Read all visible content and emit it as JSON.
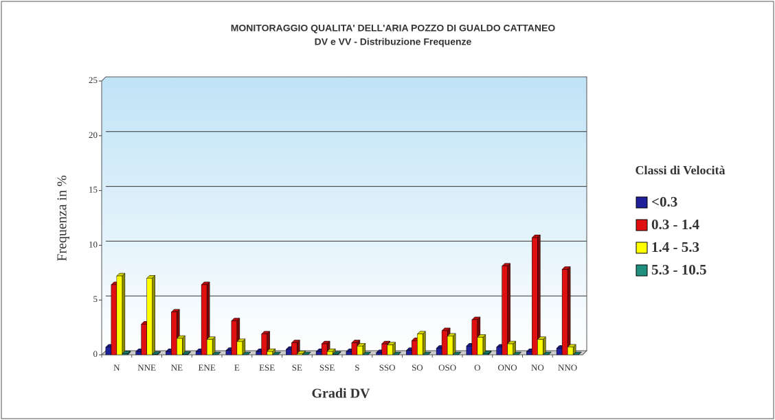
{
  "chart_data": {
    "type": "bar",
    "title": "MONITORAGGIO QUALITA' DELL'ARIA POZZO DI GUALDO CATTANEO",
    "subtitle": "DV e VV - Distribuzione Frequenze",
    "x_label": "Gradi DV",
    "y_label": "Frequenza  in %",
    "legend_title": "Classi di Velocità",
    "categories": [
      "N",
      "NNE",
      "NE",
      "ENE",
      "E",
      "ESE",
      "SE",
      "SSE",
      "S",
      "SSO",
      "SO",
      "OSO",
      "O",
      "ONO",
      "NO",
      "NNO"
    ],
    "series": [
      {
        "name": "<0.3",
        "color": "#1f1f9a",
        "values": [
          0.7,
          0.3,
          0.3,
          0.3,
          0.4,
          0.3,
          0.5,
          0.3,
          0.3,
          0.2,
          0.4,
          0.6,
          0.8,
          0.7,
          0.3,
          0.6
        ]
      },
      {
        "name": "0.3 - 1.4",
        "color": "#e01010",
        "values": [
          6.4,
          2.8,
          3.9,
          6.4,
          3.1,
          1.9,
          1.1,
          1.0,
          1.1,
          1.0,
          1.3,
          2.2,
          3.2,
          8.1,
          10.7,
          7.8
        ]
      },
      {
        "name": "1.4 - 5.3",
        "color": "#ffff00",
        "values": [
          7.2,
          7.0,
          1.5,
          1.4,
          1.2,
          0.3,
          0.1,
          0.3,
          0.8,
          0.9,
          1.9,
          1.7,
          1.6,
          1.0,
          1.4,
          0.7
        ]
      },
      {
        "name": "5.3 - 10.5",
        "color": "#1f8f7f",
        "values": [
          0.1,
          0.05,
          0.05,
          0,
          0,
          0,
          0,
          0.05,
          0,
          0,
          0,
          0,
          0.1,
          0,
          0,
          0
        ]
      }
    ],
    "ylim": [
      0,
      25
    ],
    "yticks": [
      0,
      5,
      10,
      15,
      20,
      25
    ],
    "grid": true,
    "legend": "right"
  }
}
